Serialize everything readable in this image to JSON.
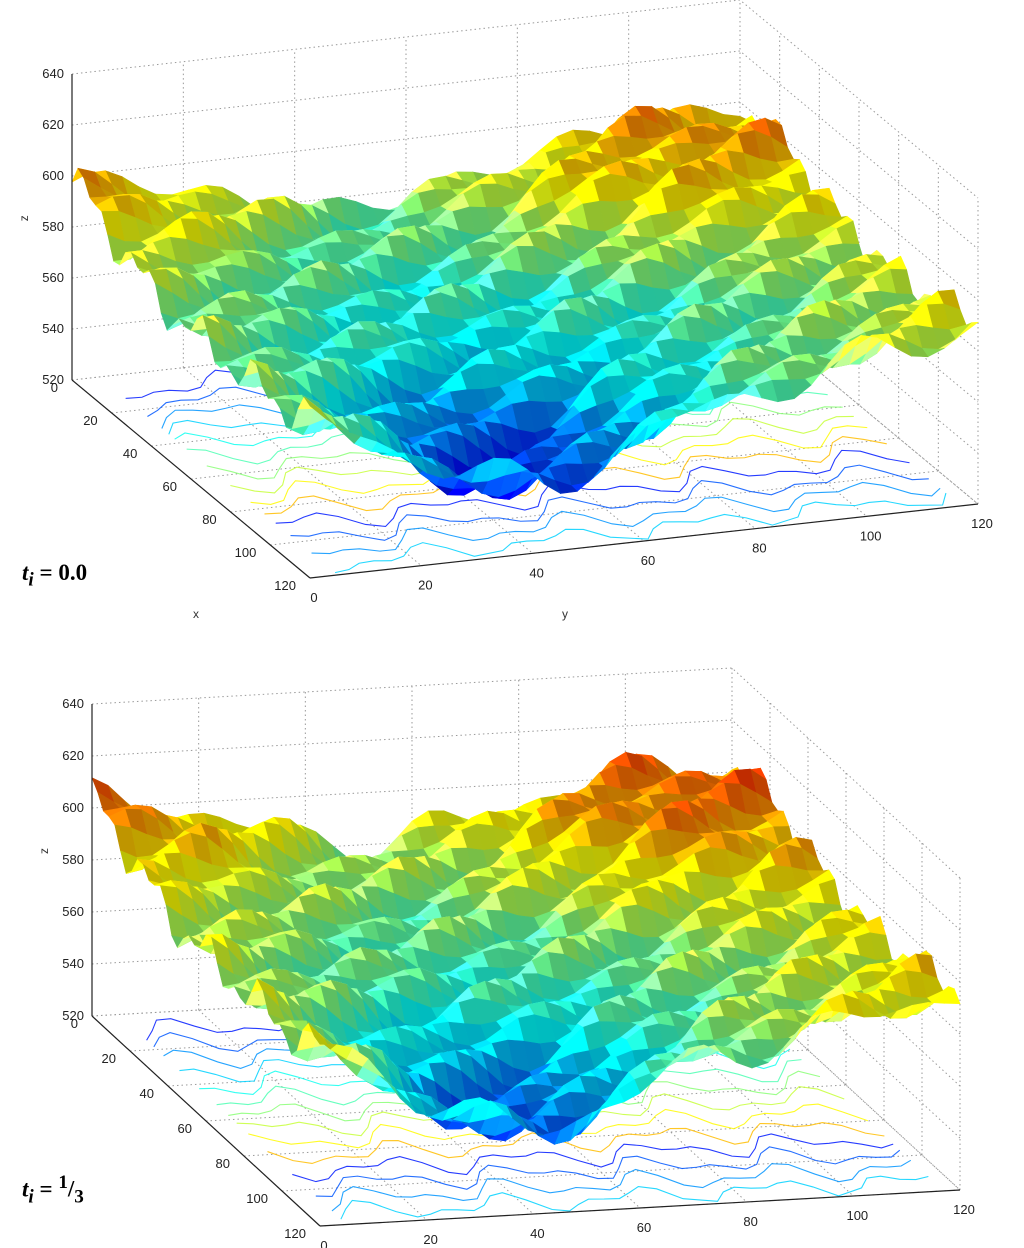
{
  "chart_data": [
    {
      "type": "surface",
      "panel_label": {
        "var": "t",
        "sub": "i",
        "eq": " = ",
        "value": "0.0"
      },
      "xlabel": "x",
      "ylabel": "y",
      "zlabel": "z",
      "x_ticks": [
        "0",
        "20",
        "40",
        "60",
        "80",
        "100",
        "120"
      ],
      "y_ticks": [
        "0",
        "20",
        "40",
        "60",
        "80",
        "100",
        "120"
      ],
      "z_ticks": [
        "520",
        "540",
        "560",
        "580",
        "600",
        "620",
        "640"
      ],
      "xlim": [
        0,
        120
      ],
      "ylim": [
        0,
        120
      ],
      "zlim": [
        520,
        640
      ],
      "grid": true,
      "colormap": "jet",
      "contours_on_floor": true
    },
    {
      "type": "surface",
      "panel_label": {
        "var": "t",
        "sub": "i",
        "eq": " = ",
        "num": "1",
        "den": "3"
      },
      "xlabel": "",
      "ylabel": "",
      "zlabel": "z",
      "x_ticks": [
        "0",
        "20",
        "40",
        "60",
        "80",
        "100",
        "120"
      ],
      "y_ticks": [
        "0",
        "20",
        "40",
        "60",
        "80",
        "100",
        "120"
      ],
      "z_ticks": [
        "520",
        "540",
        "560",
        "580",
        "600",
        "620",
        "640"
      ],
      "xlim": [
        0,
        120
      ],
      "ylim": [
        0,
        120
      ],
      "zlim": [
        520,
        640
      ],
      "grid": true,
      "colormap": "jet",
      "contours_on_floor": true
    }
  ]
}
